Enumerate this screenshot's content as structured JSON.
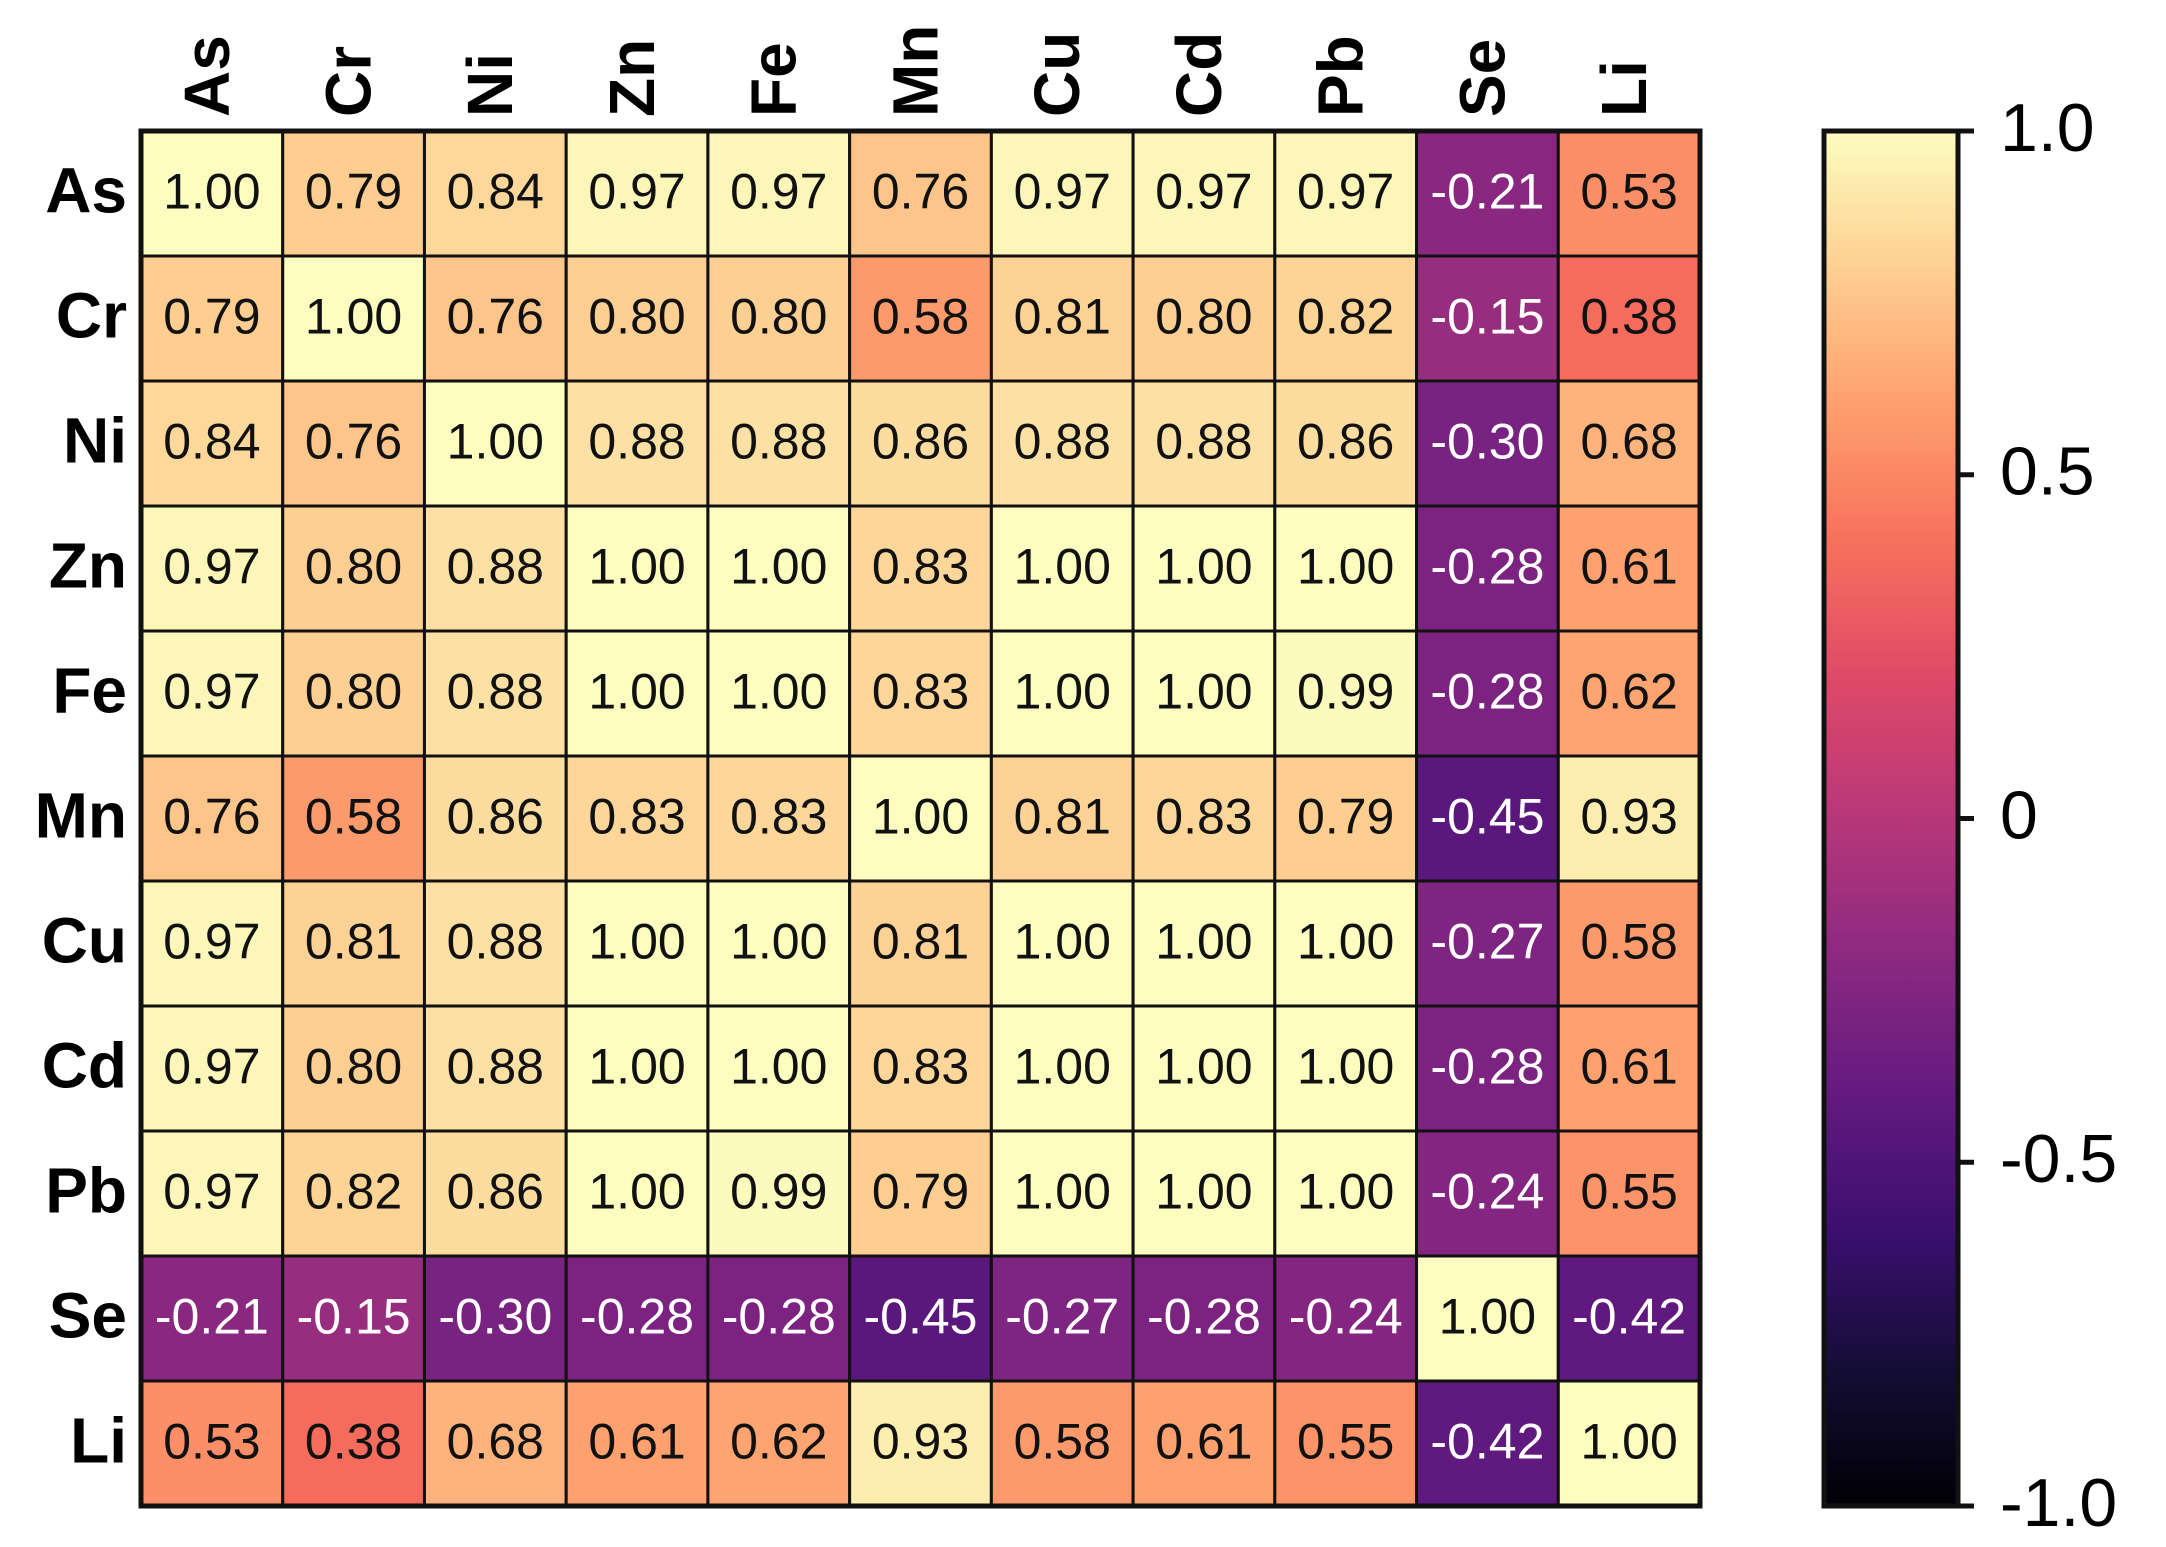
{
  "chart_data": {
    "type": "heatmap",
    "x_categories": [
      "As",
      "Cr",
      "Ni",
      "Zn",
      "Fe",
      "Mn",
      "Cu",
      "Cd",
      "Pb",
      "Se",
      "Li"
    ],
    "y_categories": [
      "As",
      "Cr",
      "Ni",
      "Zn",
      "Fe",
      "Mn",
      "Cu",
      "Cd",
      "Pb",
      "Se",
      "Li"
    ],
    "values": [
      [
        1,
        0.79,
        0.84,
        0.97,
        0.97,
        0.76,
        0.97,
        0.97,
        0.97,
        -0.21,
        0.53
      ],
      [
        0.79,
        1,
        0.76,
        0.8,
        0.8,
        0.58,
        0.81,
        0.8,
        0.82,
        -0.15,
        0.38
      ],
      [
        0.84,
        0.76,
        1,
        0.88,
        0.88,
        0.86,
        0.88,
        0.88,
        0.86,
        -0.3,
        0.68
      ],
      [
        0.97,
        0.8,
        0.88,
        1,
        1,
        0.83,
        1,
        1,
        1,
        -0.28,
        0.61
      ],
      [
        0.97,
        0.8,
        0.88,
        1,
        1,
        0.83,
        1,
        1,
        0.99,
        -0.28,
        0.62
      ],
      [
        0.76,
        0.58,
        0.86,
        0.83,
        0.83,
        1,
        0.81,
        0.83,
        0.79,
        -0.45,
        0.93
      ],
      [
        0.97,
        0.81,
        0.88,
        1,
        1,
        0.81,
        1,
        1,
        1,
        -0.27,
        0.58
      ],
      [
        0.97,
        0.8,
        0.88,
        1,
        1,
        0.83,
        1,
        1,
        1,
        -0.28,
        0.61
      ],
      [
        0.97,
        0.82,
        0.86,
        1,
        0.99,
        0.79,
        1,
        1,
        1,
        -0.24,
        0.55
      ],
      [
        -0.21,
        -0.15,
        -0.3,
        -0.28,
        -0.28,
        -0.45,
        -0.27,
        -0.28,
        -0.24,
        1,
        -0.42
      ],
      [
        0.53,
        0.38,
        0.68,
        0.61,
        0.62,
        0.93,
        0.58,
        0.61,
        0.55,
        -0.42,
        1
      ]
    ],
    "value_labels": [
      [
        "1.00",
        "0.79",
        "0.84",
        "0.97",
        "0.97",
        "0.76",
        "0.97",
        "0.97",
        "0.97",
        "-0.21",
        "0.53"
      ],
      [
        "0.79",
        "1.00",
        "0.76",
        "0.80",
        "0.80",
        "0.58",
        "0.81",
        "0.80",
        "0.82",
        "-0.15",
        "0.38"
      ],
      [
        "0.84",
        "0.76",
        "1.00",
        "0.88",
        "0.88",
        "0.86",
        "0.88",
        "0.88",
        "0.86",
        "-0.30",
        "0.68"
      ],
      [
        "0.97",
        "0.80",
        "0.88",
        "1.00",
        "1.00",
        "0.83",
        "1.00",
        "1.00",
        "1.00",
        "-0.28",
        "0.61"
      ],
      [
        "0.97",
        "0.80",
        "0.88",
        "1.00",
        "1.00",
        "0.83",
        "1.00",
        "1.00",
        "0.99",
        "-0.28",
        "0.62"
      ],
      [
        "0.76",
        "0.58",
        "0.86",
        "0.83",
        "0.83",
        "1.00",
        "0.81",
        "0.83",
        "0.79",
        "-0.45",
        "0.93"
      ],
      [
        "0.97",
        "0.81",
        "0.88",
        "1.00",
        "1.00",
        "0.81",
        "1.00",
        "1.00",
        "1.00",
        "-0.27",
        "0.58"
      ],
      [
        "0.97",
        "0.80",
        "0.88",
        "1.00",
        "1.00",
        "0.83",
        "1.00",
        "1.00",
        "1.00",
        "-0.28",
        "0.61"
      ],
      [
        "0.97",
        "0.82",
        "0.86",
        "1.00",
        "0.99",
        "0.79",
        "1.00",
        "1.00",
        "1.00",
        "-0.24",
        "0.55"
      ],
      [
        "-0.21",
        "-0.15",
        "-0.30",
        "-0.28",
        "-0.28",
        "-0.45",
        "-0.27",
        "-0.28",
        "-0.24",
        "1.00",
        "-0.42"
      ],
      [
        "0.53",
        "0.38",
        "0.68",
        "0.61",
        "0.62",
        "0.93",
        "0.58",
        "0.61",
        "0.55",
        "-0.42",
        "1.00"
      ]
    ],
    "colormap": "magma",
    "zlim": [
      -1,
      1
    ],
    "zticks": [
      {
        "value": -1,
        "label": "-1.0"
      },
      -0.5,
      0,
      0.5,
      {
        "value": 1,
        "label": "1.0"
      }
    ]
  }
}
